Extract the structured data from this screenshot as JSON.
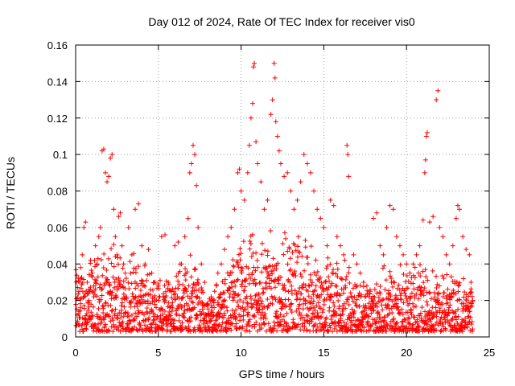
{
  "chart_data": {
    "type": "scatter",
    "title": "Day 012 of 2024, Rate Of TEC Index for receiver vis0",
    "xlabel": "GPS time / hours",
    "ylabel": "ROTI / TECUs",
    "xlim": [
      0,
      25
    ],
    "ylim": [
      0,
      0.16
    ],
    "x_ticks": [
      0,
      5,
      10,
      15,
      20,
      25
    ],
    "y_ticks": [
      0,
      0.02,
      0.04,
      0.06,
      0.08,
      0.1,
      0.12,
      0.14,
      0.16
    ],
    "x_tick_labels": [
      "0",
      "5",
      "10",
      "15",
      "20",
      "25"
    ],
    "y_tick_labels": [
      "0",
      "0.02",
      "0.04",
      "0.06",
      "0.08",
      "0.1",
      "0.12",
      "0.14",
      "0.16"
    ],
    "grid": true,
    "marker": "+",
    "marker_color": "#ff0000",
    "series": [
      {
        "name": "ROTI",
        "points": [
          [
            0.1,
            0.012
          ],
          [
            0.2,
            0.025
          ],
          [
            0.3,
            0.038
          ],
          [
            0.4,
            0.045
          ],
          [
            0.5,
            0.06
          ],
          [
            0.6,
            0.063
          ],
          [
            0.7,
            0.03
          ],
          [
            0.8,
            0.02
          ],
          [
            0.9,
            0.042
          ],
          [
            1.0,
            0.035
          ],
          [
            1.1,
            0.028
          ],
          [
            1.2,
            0.05
          ],
          [
            1.3,
            0.04
          ],
          [
            1.4,
            0.055
          ],
          [
            1.5,
            0.06
          ],
          [
            1.6,
            0.102
          ],
          [
            1.7,
            0.103
          ],
          [
            1.8,
            0.09
          ],
          [
            1.9,
            0.085
          ],
          [
            2.0,
            0.088
          ],
          [
            2.1,
            0.098
          ],
          [
            2.2,
            0.1
          ],
          [
            2.3,
            0.07
          ],
          [
            2.4,
            0.055
          ],
          [
            2.5,
            0.045
          ],
          [
            2.6,
            0.066
          ],
          [
            2.7,
            0.068
          ],
          [
            2.8,
            0.05
          ],
          [
            2.9,
            0.04
          ],
          [
            3.0,
            0.035
          ],
          [
            3.2,
            0.06
          ],
          [
            3.4,
            0.045
          ],
          [
            3.6,
            0.07
          ],
          [
            3.8,
            0.073
          ],
          [
            4.0,
            0.05
          ],
          [
            4.2,
            0.04
          ],
          [
            4.4,
            0.048
          ],
          [
            4.6,
            0.035
          ],
          [
            4.8,
            0.03
          ],
          [
            5.0,
            0.028
          ],
          [
            5.2,
            0.055
          ],
          [
            5.4,
            0.056
          ],
          [
            5.6,
            0.03
          ],
          [
            5.8,
            0.025
          ],
          [
            6.0,
            0.05
          ],
          [
            6.2,
            0.052
          ],
          [
            6.4,
            0.04
          ],
          [
            6.6,
            0.055
          ],
          [
            6.8,
            0.065
          ],
          [
            6.9,
            0.09
          ],
          [
            7.0,
            0.095
          ],
          [
            7.1,
            0.105
          ],
          [
            7.2,
            0.1
          ],
          [
            7.3,
            0.083
          ],
          [
            7.4,
            0.06
          ],
          [
            7.6,
            0.04
          ],
          [
            7.8,
            0.03
          ],
          [
            8.0,
            0.018
          ],
          [
            8.2,
            0.022
          ],
          [
            8.4,
            0.025
          ],
          [
            8.6,
            0.035
          ],
          [
            8.8,
            0.04
          ],
          [
            9.0,
            0.048
          ],
          [
            9.2,
            0.055
          ],
          [
            9.4,
            0.06
          ],
          [
            9.6,
            0.07
          ],
          [
            9.8,
            0.09
          ],
          [
            9.9,
            0.092
          ],
          [
            10.0,
            0.08
          ],
          [
            10.2,
            0.075
          ],
          [
            10.4,
            0.09
          ],
          [
            10.5,
            0.105
          ],
          [
            10.6,
            0.12
          ],
          [
            10.7,
            0.128
          ],
          [
            10.75,
            0.148
          ],
          [
            10.8,
            0.15
          ],
          [
            10.9,
            0.107
          ],
          [
            11.0,
            0.095
          ],
          [
            11.2,
            0.085
          ],
          [
            11.4,
            0.07
          ],
          [
            11.6,
            0.075
          ],
          [
            11.8,
            0.122
          ],
          [
            11.9,
            0.13
          ],
          [
            12.0,
            0.15
          ],
          [
            12.05,
            0.142
          ],
          [
            12.1,
            0.118
          ],
          [
            12.2,
            0.11
          ],
          [
            12.3,
            0.102
          ],
          [
            12.4,
            0.095
          ],
          [
            12.6,
            0.088
          ],
          [
            12.8,
            0.09
          ],
          [
            13.0,
            0.08
          ],
          [
            13.2,
            0.07
          ],
          [
            13.4,
            0.075
          ],
          [
            13.6,
            0.085
          ],
          [
            13.8,
            0.1
          ],
          [
            14.0,
            0.095
          ],
          [
            14.2,
            0.09
          ],
          [
            14.4,
            0.08
          ],
          [
            14.6,
            0.07
          ],
          [
            14.8,
            0.065
          ],
          [
            15.0,
            0.06
          ],
          [
            15.2,
            0.05
          ],
          [
            15.4,
            0.075
          ],
          [
            15.6,
            0.072
          ],
          [
            15.8,
            0.055
          ],
          [
            16.0,
            0.05
          ],
          [
            16.2,
            0.045
          ],
          [
            16.4,
            0.105
          ],
          [
            16.45,
            0.1
          ],
          [
            16.5,
            0.088
          ],
          [
            16.8,
            0.045
          ],
          [
            17.0,
            0.04
          ],
          [
            17.2,
            0.035
          ],
          [
            17.4,
            0.03
          ],
          [
            17.6,
            0.028
          ],
          [
            17.8,
            0.025
          ],
          [
            18.0,
            0.065
          ],
          [
            18.2,
            0.068
          ],
          [
            18.4,
            0.05
          ],
          [
            18.6,
            0.045
          ],
          [
            18.8,
            0.06
          ],
          [
            19.0,
            0.072
          ],
          [
            19.2,
            0.07
          ],
          [
            19.4,
            0.055
          ],
          [
            19.6,
            0.05
          ],
          [
            19.8,
            0.045
          ],
          [
            20.0,
            0.04
          ],
          [
            20.2,
            0.035
          ],
          [
            20.4,
            0.04
          ],
          [
            20.6,
            0.045
          ],
          [
            20.8,
            0.05
          ],
          [
            21.0,
            0.064
          ],
          [
            21.1,
            0.09
          ],
          [
            21.15,
            0.097
          ],
          [
            21.2,
            0.11
          ],
          [
            21.25,
            0.112
          ],
          [
            21.4,
            0.063
          ],
          [
            21.6,
            0.066
          ],
          [
            21.8,
            0.13
          ],
          [
            21.9,
            0.135
          ],
          [
            22.0,
            0.06
          ],
          [
            22.2,
            0.055
          ],
          [
            22.4,
            0.045
          ],
          [
            22.6,
            0.04
          ],
          [
            22.8,
            0.05
          ],
          [
            23.0,
            0.065
          ],
          [
            23.1,
            0.072
          ],
          [
            23.2,
            0.07
          ],
          [
            23.4,
            0.055
          ],
          [
            23.6,
            0.048
          ],
          [
            23.8,
            0.045
          ],
          [
            23.9,
            0.03
          ],
          [
            24.0,
            0.02
          ]
        ]
      }
    ],
    "dense_band": {
      "description": "dense band of ROTI values from hour 0 to hour 24",
      "envelope": [
        [
          0,
          0.038
        ],
        [
          1,
          0.04
        ],
        [
          2,
          0.048
        ],
        [
          3,
          0.045
        ],
        [
          4,
          0.04
        ],
        [
          5,
          0.032
        ],
        [
          6,
          0.035
        ],
        [
          7,
          0.045
        ],
        [
          8,
          0.022
        ],
        [
          9,
          0.035
        ],
        [
          10,
          0.05
        ],
        [
          11,
          0.055
        ],
        [
          12,
          0.06
        ],
        [
          13,
          0.058
        ],
        [
          14,
          0.05
        ],
        [
          15,
          0.045
        ],
        [
          16,
          0.04
        ],
        [
          17,
          0.032
        ],
        [
          18,
          0.03
        ],
        [
          19,
          0.04
        ],
        [
          20,
          0.035
        ],
        [
          21,
          0.04
        ],
        [
          22,
          0.035
        ],
        [
          23,
          0.035
        ],
        [
          24,
          0.025
        ]
      ],
      "floor": 0.003
    }
  }
}
